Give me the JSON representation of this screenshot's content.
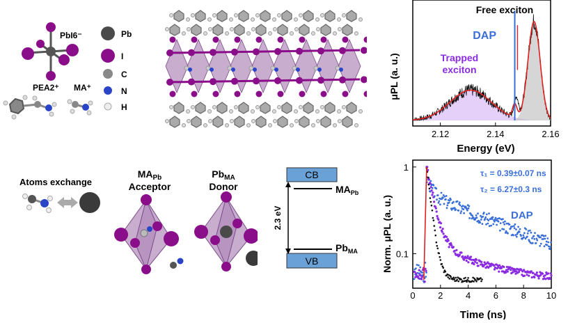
{
  "legend": {
    "pbi6": "PbI6⁻",
    "pea": "PEA2⁺",
    "ma": "MA⁺",
    "pb": "Pb",
    "i": "I",
    "c": "C",
    "n": "N",
    "h": "H"
  },
  "defects": {
    "exchange": "Atoms exchange",
    "ma_pb": "MAPb",
    "acceptor": "Acceptor",
    "pb_ma": "PbMA",
    "donor": "Donor"
  },
  "bands": {
    "cb": "CB",
    "vb": "VB",
    "gap": "2.3 eV",
    "level_top": "MAPb",
    "level_bottom": "PbMA"
  },
  "colors": {
    "iodine": "#8a0d8a",
    "lead": "#4a4a4a",
    "octahedron": "#9b6aa6",
    "band": "#6aa2d8",
    "dap": "#3a6fd8",
    "trapped": "#8a2be2",
    "fit": "#e02020"
  },
  "chart_data": [
    {
      "type": "line",
      "xlabel": "Energy (eV)",
      "ylabel": "μPL (a. u.)",
      "xlim": [
        2.11,
        2.16
      ],
      "xticks": [
        2.12,
        2.14,
        2.16
      ],
      "annotations": [
        "Free exciton",
        "DAP",
        "Trapped exciton"
      ],
      "peaks": [
        {
          "name": "Trapped exciton",
          "center": 2.131
        },
        {
          "name": "DAP",
          "center": 2.147
        },
        {
          "name": "Free exciton",
          "center": 2.154
        }
      ]
    },
    {
      "type": "scatter",
      "xlabel": "Time (ns)",
      "ylabel": "Norm. μPL (a. u.)",
      "xlim": [
        0,
        10
      ],
      "ylim": [
        0.04,
        1.2
      ],
      "yscale": "log",
      "xticks": [
        0,
        2,
        4,
        6,
        8,
        10
      ],
      "yticks": [
        0.1,
        1
      ],
      "annotations": [
        "τ₁ = 0.39±0.07 ns",
        "τ₂ = 6.27±0.3 ns",
        "DAP"
      ],
      "tau1": 0.39,
      "tau2": 6.27
    }
  ]
}
